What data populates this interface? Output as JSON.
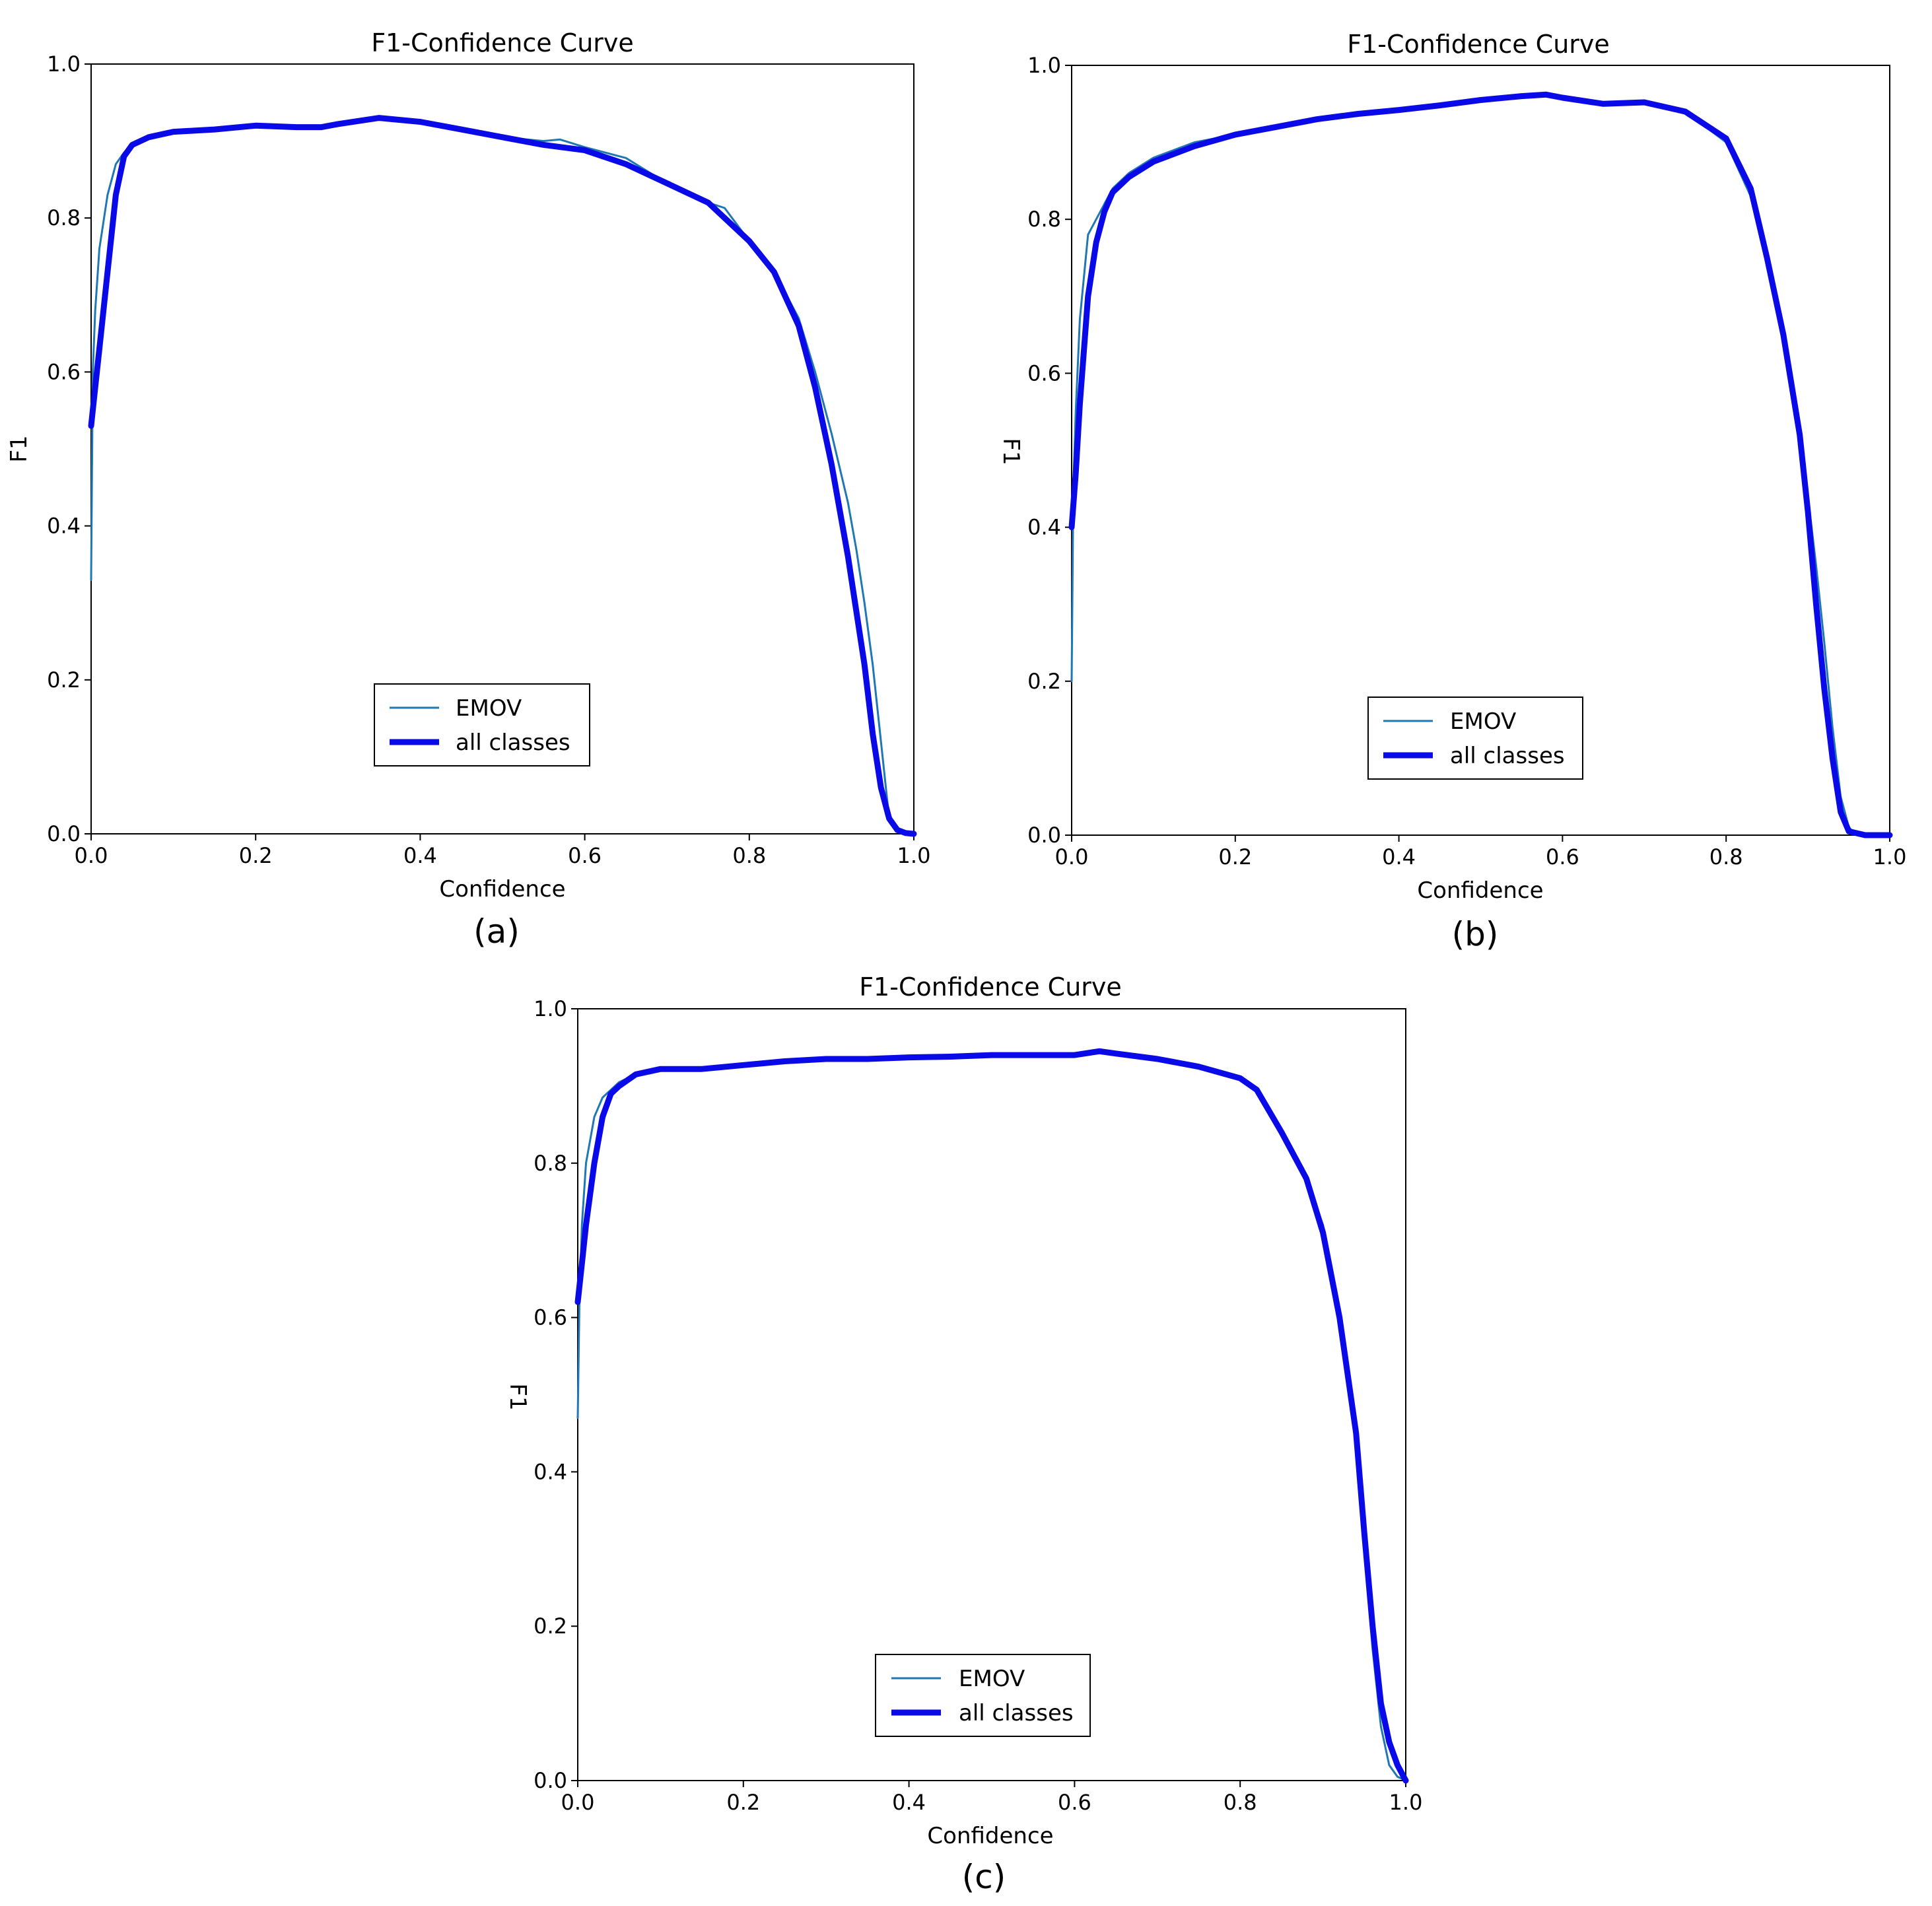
{
  "figure": {
    "panel_labels": [
      "(a)",
      "(b)",
      "(c)"
    ]
  },
  "colors": {
    "emov": "#1f77b4",
    "all_classes": "#0a0ae8",
    "axes": "#000000"
  },
  "chart_data": [
    {
      "type": "line",
      "title": "F1-Confidence Curve",
      "xlabel": "Confidence",
      "ylabel": "F1",
      "xlim": [
        0,
        1
      ],
      "ylim": [
        0,
        1
      ],
      "xticks": [
        "0.0",
        "0.2",
        "0.4",
        "0.6",
        "0.8",
        "1.0"
      ],
      "yticks": [
        "0.0",
        "0.2",
        "0.4",
        "0.6",
        "0.8",
        "1.0"
      ],
      "grid": false,
      "legend_position": "lower-center",
      "series": [
        {
          "name": "EMOV",
          "x": [
            0,
            0.002,
            0.005,
            0.01,
            0.02,
            0.03,
            0.04,
            0.05,
            0.07,
            0.1,
            0.15,
            0.2,
            0.25,
            0.3,
            0.35,
            0.4,
            0.45,
            0.5,
            0.55,
            0.57,
            0.6,
            0.65,
            0.7,
            0.75,
            0.77,
            0.8,
            0.83,
            0.86,
            0.88,
            0.9,
            0.92,
            0.93,
            0.94,
            0.95,
            0.96,
            0.97,
            0.98,
            0.99,
            1.0
          ],
          "y": [
            0.33,
            0.6,
            0.68,
            0.76,
            0.83,
            0.87,
            0.885,
            0.895,
            0.905,
            0.912,
            0.915,
            0.92,
            0.918,
            0.92,
            0.928,
            0.925,
            0.915,
            0.905,
            0.9,
            0.902,
            0.892,
            0.878,
            0.845,
            0.82,
            0.813,
            0.77,
            0.73,
            0.67,
            0.6,
            0.52,
            0.43,
            0.37,
            0.3,
            0.22,
            0.12,
            0.02,
            0.005,
            0.001,
            0
          ]
        },
        {
          "name": "all classes",
          "x": [
            0,
            0.005,
            0.01,
            0.02,
            0.03,
            0.04,
            0.05,
            0.07,
            0.1,
            0.15,
            0.2,
            0.25,
            0.28,
            0.3,
            0.35,
            0.4,
            0.45,
            0.5,
            0.55,
            0.6,
            0.65,
            0.7,
            0.75,
            0.8,
            0.83,
            0.86,
            0.88,
            0.9,
            0.92,
            0.94,
            0.95,
            0.96,
            0.97,
            0.98,
            0.99,
            1.0
          ],
          "y": [
            0.53,
            0.58,
            0.63,
            0.73,
            0.83,
            0.88,
            0.895,
            0.905,
            0.912,
            0.915,
            0.92,
            0.918,
            0.918,
            0.922,
            0.93,
            0.925,
            0.915,
            0.905,
            0.895,
            0.888,
            0.87,
            0.845,
            0.82,
            0.77,
            0.73,
            0.66,
            0.58,
            0.48,
            0.36,
            0.22,
            0.13,
            0.06,
            0.02,
            0.005,
            0.001,
            0
          ]
        }
      ]
    },
    {
      "type": "line",
      "title": "F1-Confidence Curve",
      "xlabel": "Confidence",
      "ylabel": "F1",
      "xlim": [
        0,
        1
      ],
      "ylim": [
        0,
        1
      ],
      "xticks": [
        "0.0",
        "0.2",
        "0.4",
        "0.6",
        "0.8",
        "1.0"
      ],
      "yticks": [
        "0.0",
        "0.2",
        "0.4",
        "0.6",
        "0.8",
        "1.0"
      ],
      "grid": false,
      "legend_position": "lower-center",
      "series": [
        {
          "name": "EMOV",
          "x": [
            0,
            0.002,
            0.005,
            0.01,
            0.02,
            0.03,
            0.04,
            0.05,
            0.07,
            0.1,
            0.15,
            0.2,
            0.25,
            0.3,
            0.35,
            0.4,
            0.45,
            0.5,
            0.55,
            0.58,
            0.6,
            0.65,
            0.7,
            0.75,
            0.8,
            0.83,
            0.85,
            0.87,
            0.89,
            0.9,
            0.91,
            0.92,
            0.93,
            0.94,
            0.95,
            0.96,
            1.0
          ],
          "y": [
            0.2,
            0.45,
            0.55,
            0.67,
            0.78,
            0.8,
            0.82,
            0.84,
            0.86,
            0.88,
            0.9,
            0.91,
            0.922,
            0.93,
            0.937,
            0.942,
            0.948,
            0.956,
            0.96,
            0.963,
            0.96,
            0.95,
            0.952,
            0.94,
            0.9,
            0.83,
            0.74,
            0.64,
            0.52,
            0.44,
            0.35,
            0.25,
            0.14,
            0.05,
            0.01,
            0,
            0
          ]
        },
        {
          "name": "all classes",
          "x": [
            0,
            0.005,
            0.01,
            0.02,
            0.03,
            0.04,
            0.05,
            0.07,
            0.1,
            0.15,
            0.2,
            0.25,
            0.3,
            0.35,
            0.4,
            0.45,
            0.5,
            0.55,
            0.58,
            0.6,
            0.65,
            0.7,
            0.75,
            0.8,
            0.83,
            0.85,
            0.87,
            0.89,
            0.9,
            0.91,
            0.92,
            0.93,
            0.94,
            0.95,
            0.97,
            1.0
          ],
          "y": [
            0.4,
            0.47,
            0.56,
            0.7,
            0.77,
            0.81,
            0.835,
            0.855,
            0.875,
            0.895,
            0.91,
            0.92,
            0.93,
            0.937,
            0.942,
            0.948,
            0.955,
            0.96,
            0.962,
            0.958,
            0.95,
            0.952,
            0.94,
            0.905,
            0.84,
            0.75,
            0.65,
            0.52,
            0.42,
            0.3,
            0.19,
            0.1,
            0.03,
            0.005,
            0,
            0
          ]
        }
      ]
    },
    {
      "type": "line",
      "title": "F1-Confidence Curve",
      "xlabel": "Confidence",
      "ylabel": "F1",
      "xlim": [
        0,
        1
      ],
      "ylim": [
        0,
        1
      ],
      "xticks": [
        "0.0",
        "0.2",
        "0.4",
        "0.6",
        "0.8",
        "1.0"
      ],
      "yticks": [
        "0.0",
        "0.2",
        "0.4",
        "0.6",
        "0.8",
        "1.0"
      ],
      "grid": false,
      "legend_position": "lower-center",
      "series": [
        {
          "name": "EMOV",
          "x": [
            0,
            0.002,
            0.005,
            0.01,
            0.02,
            0.03,
            0.04,
            0.05,
            0.07,
            0.1,
            0.15,
            0.2,
            0.25,
            0.3,
            0.35,
            0.4,
            0.45,
            0.5,
            0.55,
            0.6,
            0.63,
            0.65,
            0.7,
            0.75,
            0.8,
            0.82,
            0.85,
            0.88,
            0.9,
            0.92,
            0.94,
            0.95,
            0.96,
            0.97,
            0.98,
            0.99,
            1.0
          ],
          "y": [
            0.47,
            0.62,
            0.72,
            0.8,
            0.86,
            0.885,
            0.895,
            0.905,
            0.915,
            0.92,
            0.922,
            0.927,
            0.932,
            0.935,
            0.935,
            0.937,
            0.938,
            0.94,
            0.94,
            0.94,
            0.945,
            0.942,
            0.935,
            0.925,
            0.91,
            0.895,
            0.84,
            0.78,
            0.72,
            0.61,
            0.45,
            0.3,
            0.17,
            0.07,
            0.02,
            0.005,
            0
          ]
        },
        {
          "name": "all classes",
          "x": [
            0,
            0.005,
            0.01,
            0.02,
            0.03,
            0.04,
            0.05,
            0.07,
            0.1,
            0.15,
            0.2,
            0.25,
            0.3,
            0.35,
            0.4,
            0.45,
            0.5,
            0.55,
            0.6,
            0.63,
            0.65,
            0.7,
            0.75,
            0.8,
            0.82,
            0.85,
            0.88,
            0.9,
            0.92,
            0.94,
            0.95,
            0.96,
            0.97,
            0.98,
            0.99,
            1.0
          ],
          "y": [
            0.62,
            0.67,
            0.72,
            0.8,
            0.86,
            0.89,
            0.9,
            0.915,
            0.922,
            0.922,
            0.927,
            0.932,
            0.935,
            0.935,
            0.937,
            0.938,
            0.94,
            0.94,
            0.94,
            0.945,
            0.942,
            0.935,
            0.925,
            0.91,
            0.895,
            0.84,
            0.78,
            0.71,
            0.6,
            0.45,
            0.32,
            0.2,
            0.1,
            0.05,
            0.02,
            0
          ]
        }
      ]
    }
  ]
}
